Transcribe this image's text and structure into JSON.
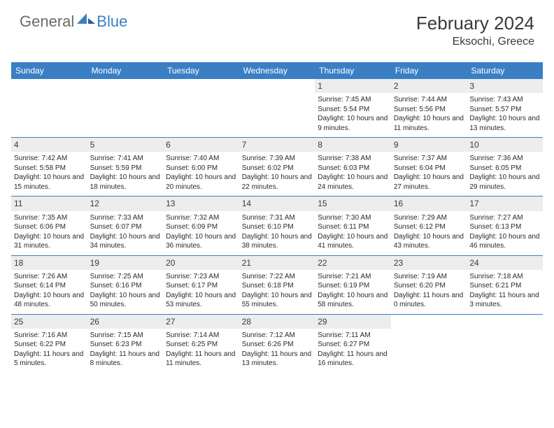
{
  "brand": {
    "part1": "General",
    "part2": "Blue"
  },
  "title": "February 2024",
  "location": "Eksochi, Greece",
  "colors": {
    "header_bg": "#3a7fc4",
    "header_text": "#ffffff",
    "daynum_bg": "#ededed",
    "text": "#2a2a2a",
    "rule": "#3a7fc4"
  },
  "weekdays": [
    "Sunday",
    "Monday",
    "Tuesday",
    "Wednesday",
    "Thursday",
    "Friday",
    "Saturday"
  ],
  "first_weekday_index": 4,
  "days": [
    {
      "n": 1,
      "sr": "7:45 AM",
      "ss": "5:54 PM",
      "dl": "10 hours and 9 minutes."
    },
    {
      "n": 2,
      "sr": "7:44 AM",
      "ss": "5:56 PM",
      "dl": "10 hours and 11 minutes."
    },
    {
      "n": 3,
      "sr": "7:43 AM",
      "ss": "5:57 PM",
      "dl": "10 hours and 13 minutes."
    },
    {
      "n": 4,
      "sr": "7:42 AM",
      "ss": "5:58 PM",
      "dl": "10 hours and 15 minutes."
    },
    {
      "n": 5,
      "sr": "7:41 AM",
      "ss": "5:59 PM",
      "dl": "10 hours and 18 minutes."
    },
    {
      "n": 6,
      "sr": "7:40 AM",
      "ss": "6:00 PM",
      "dl": "10 hours and 20 minutes."
    },
    {
      "n": 7,
      "sr": "7:39 AM",
      "ss": "6:02 PM",
      "dl": "10 hours and 22 minutes."
    },
    {
      "n": 8,
      "sr": "7:38 AM",
      "ss": "6:03 PM",
      "dl": "10 hours and 24 minutes."
    },
    {
      "n": 9,
      "sr": "7:37 AM",
      "ss": "6:04 PM",
      "dl": "10 hours and 27 minutes."
    },
    {
      "n": 10,
      "sr": "7:36 AM",
      "ss": "6:05 PM",
      "dl": "10 hours and 29 minutes."
    },
    {
      "n": 11,
      "sr": "7:35 AM",
      "ss": "6:06 PM",
      "dl": "10 hours and 31 minutes."
    },
    {
      "n": 12,
      "sr": "7:33 AM",
      "ss": "6:07 PM",
      "dl": "10 hours and 34 minutes."
    },
    {
      "n": 13,
      "sr": "7:32 AM",
      "ss": "6:09 PM",
      "dl": "10 hours and 36 minutes."
    },
    {
      "n": 14,
      "sr": "7:31 AM",
      "ss": "6:10 PM",
      "dl": "10 hours and 38 minutes."
    },
    {
      "n": 15,
      "sr": "7:30 AM",
      "ss": "6:11 PM",
      "dl": "10 hours and 41 minutes."
    },
    {
      "n": 16,
      "sr": "7:29 AM",
      "ss": "6:12 PM",
      "dl": "10 hours and 43 minutes."
    },
    {
      "n": 17,
      "sr": "7:27 AM",
      "ss": "6:13 PM",
      "dl": "10 hours and 46 minutes."
    },
    {
      "n": 18,
      "sr": "7:26 AM",
      "ss": "6:14 PM",
      "dl": "10 hours and 48 minutes."
    },
    {
      "n": 19,
      "sr": "7:25 AM",
      "ss": "6:16 PM",
      "dl": "10 hours and 50 minutes."
    },
    {
      "n": 20,
      "sr": "7:23 AM",
      "ss": "6:17 PM",
      "dl": "10 hours and 53 minutes."
    },
    {
      "n": 21,
      "sr": "7:22 AM",
      "ss": "6:18 PM",
      "dl": "10 hours and 55 minutes."
    },
    {
      "n": 22,
      "sr": "7:21 AM",
      "ss": "6:19 PM",
      "dl": "10 hours and 58 minutes."
    },
    {
      "n": 23,
      "sr": "7:19 AM",
      "ss": "6:20 PM",
      "dl": "11 hours and 0 minutes."
    },
    {
      "n": 24,
      "sr": "7:18 AM",
      "ss": "6:21 PM",
      "dl": "11 hours and 3 minutes."
    },
    {
      "n": 25,
      "sr": "7:16 AM",
      "ss": "6:22 PM",
      "dl": "11 hours and 5 minutes."
    },
    {
      "n": 26,
      "sr": "7:15 AM",
      "ss": "6:23 PM",
      "dl": "11 hours and 8 minutes."
    },
    {
      "n": 27,
      "sr": "7:14 AM",
      "ss": "6:25 PM",
      "dl": "11 hours and 11 minutes."
    },
    {
      "n": 28,
      "sr": "7:12 AM",
      "ss": "6:26 PM",
      "dl": "11 hours and 13 minutes."
    },
    {
      "n": 29,
      "sr": "7:11 AM",
      "ss": "6:27 PM",
      "dl": "11 hours and 16 minutes."
    }
  ],
  "labels": {
    "sunrise": "Sunrise:",
    "sunset": "Sunset:",
    "daylight": "Daylight:"
  }
}
